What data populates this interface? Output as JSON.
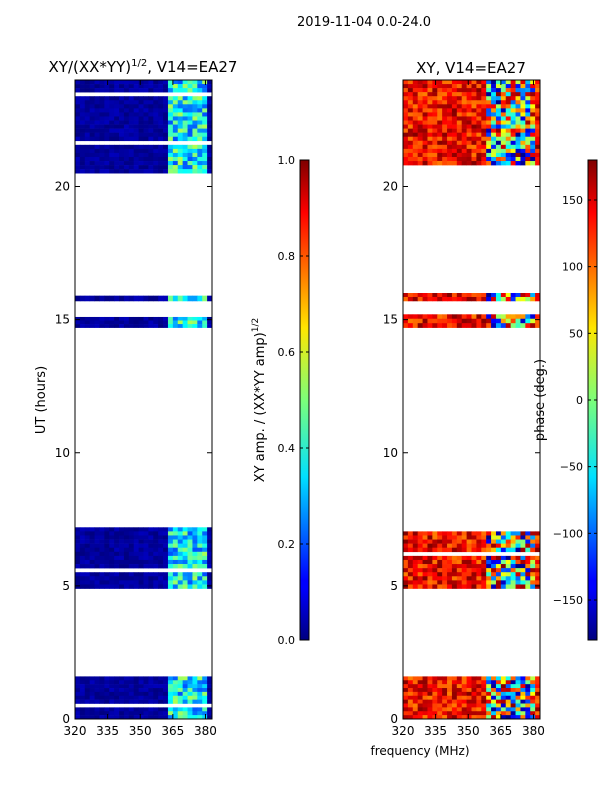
{
  "suptitle": "2019-11-04 0.0-24.0",
  "shared_xlabel": "frequency (MHz)",
  "chart_data": [
    {
      "type": "heatmap",
      "title": "XY/(XX*YY)",
      "title_sup": "1/2",
      "title_suffix": ", V14=EA27",
      "xlabel": "",
      "ylabel": "UT (hours)",
      "xlim": [
        320,
        383
      ],
      "ylim": [
        0,
        24
      ],
      "xticks": [
        320,
        335,
        350,
        365,
        380
      ],
      "yticks": [
        0,
        5,
        10,
        15,
        20
      ],
      "value_kind": "amplitude",
      "color_highlight_band": [
        363,
        381
      ],
      "data_rows_ut": [
        [
          0.0,
          1.6
        ],
        [
          4.9,
          7.2
        ],
        [
          14.7,
          15.1
        ],
        [
          15.7,
          15.9
        ],
        [
          20.5,
          24.0
        ]
      ],
      "colorbar": {
        "label": "XY amp. / (XX*YY amp)",
        "label_sup": "1/2",
        "range": [
          0.0,
          1.0
        ],
        "ticks": [
          0.0,
          0.2,
          0.4,
          0.6,
          0.8,
          1.0
        ],
        "tick_labels": [
          "0.0",
          "0.2",
          "0.4",
          "0.6",
          "0.8",
          "1.0"
        ]
      }
    },
    {
      "type": "heatmap",
      "title": "XY, V14=EA27",
      "title_sup": "",
      "title_suffix": "",
      "xlabel": "",
      "ylabel": "",
      "xlim": [
        320,
        383
      ],
      "ylim": [
        0,
        24
      ],
      "xticks": [
        320,
        335,
        350,
        365,
        380
      ],
      "yticks": [
        0,
        5,
        10,
        15,
        20
      ],
      "value_kind": "phase",
      "color_highlight_band": [
        358,
        381
      ],
      "data_rows_ut": [
        [
          0.0,
          1.6
        ],
        [
          4.9,
          7.2
        ],
        [
          14.7,
          15.2
        ],
        [
          15.7,
          16.0
        ],
        [
          20.5,
          24.0
        ]
      ],
      "colorbar": {
        "label": "phase (deg.)",
        "label_sup": "",
        "range": [
          -180,
          180
        ],
        "ticks": [
          -150,
          -100,
          -50,
          0,
          50,
          100,
          150
        ],
        "tick_labels": [
          "−150",
          "−100",
          "−50",
          "0",
          "50",
          "100",
          "150"
        ]
      }
    }
  ]
}
